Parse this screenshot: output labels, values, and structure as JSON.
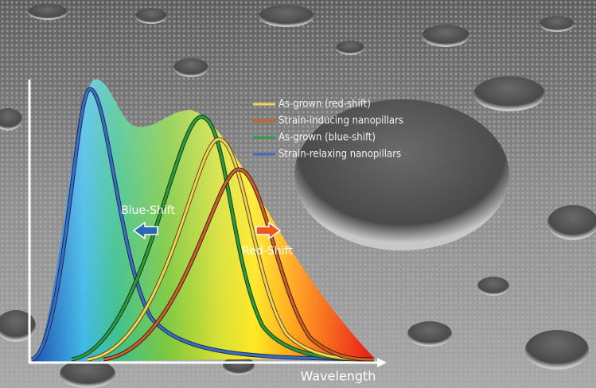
{
  "legend": [
    {
      "label": "As-grown (red-shift)",
      "color": "#f2d35a"
    },
    {
      "label": "Strain-inducing nanopillars",
      "color": "#c8622c"
    },
    {
      "label": "As-grown (blue-shift)",
      "color": "#2f9a3e"
    },
    {
      "label": "Strain-relaxing nanopillars",
      "color": "#3a6fc0"
    }
  ],
  "annotations": {
    "blue_shift": "Blue-Shift",
    "red_shift": "Red-Shift"
  },
  "axis_label": "Wavelength"
}
